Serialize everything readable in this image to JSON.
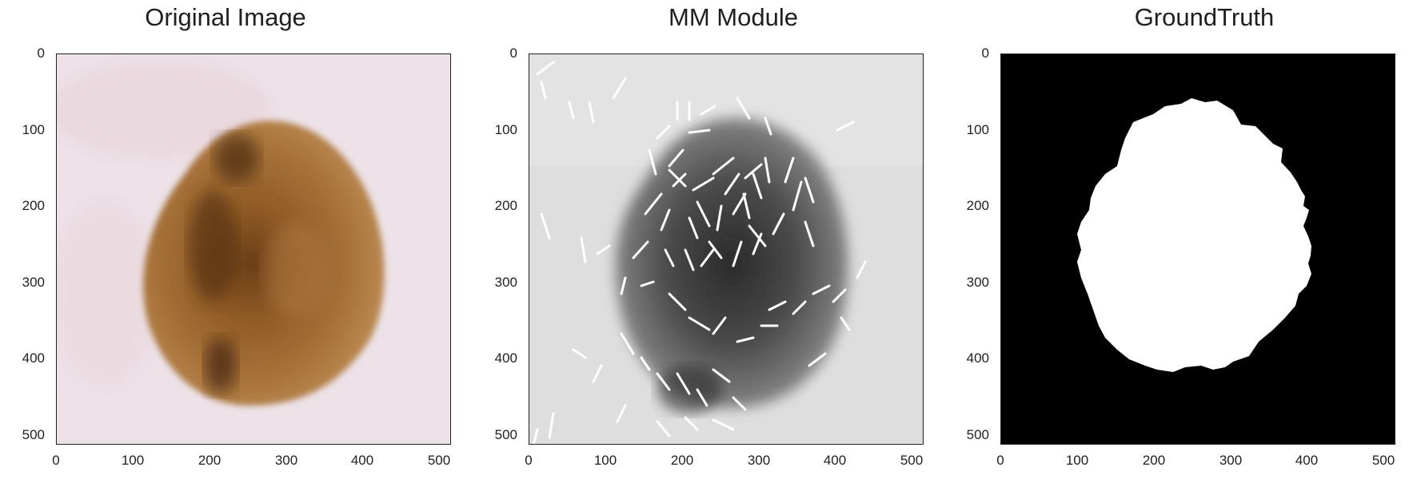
{
  "panels": [
    {
      "title": "Original Image",
      "content": "photo",
      "x_ticks": [
        "0",
        "100",
        "200",
        "300",
        "400",
        "500"
      ],
      "y_ticks": [
        "0",
        "100",
        "200",
        "300",
        "400",
        "500"
      ]
    },
    {
      "title": "MM Module",
      "content": "grayscale-with-line-features",
      "x_ticks": [
        "0",
        "100",
        "200",
        "300",
        "400",
        "500"
      ],
      "y_ticks": [
        "0",
        "100",
        "200",
        "300",
        "400",
        "500"
      ]
    },
    {
      "title": "GroundTruth",
      "content": "binary-mask",
      "x_ticks": [
        "0",
        "100",
        "200",
        "300",
        "400",
        "500"
      ],
      "y_ticks": [
        "0",
        "100",
        "200",
        "300",
        "400",
        "500"
      ]
    }
  ],
  "colors": {
    "skin": "#ece2e6",
    "lesion_dark": "#5a3414",
    "lesion_mid": "#a8733a",
    "gray_bg": "#dcdcdc",
    "mask_bg": "#000000",
    "mask_fg": "#ffffff"
  }
}
